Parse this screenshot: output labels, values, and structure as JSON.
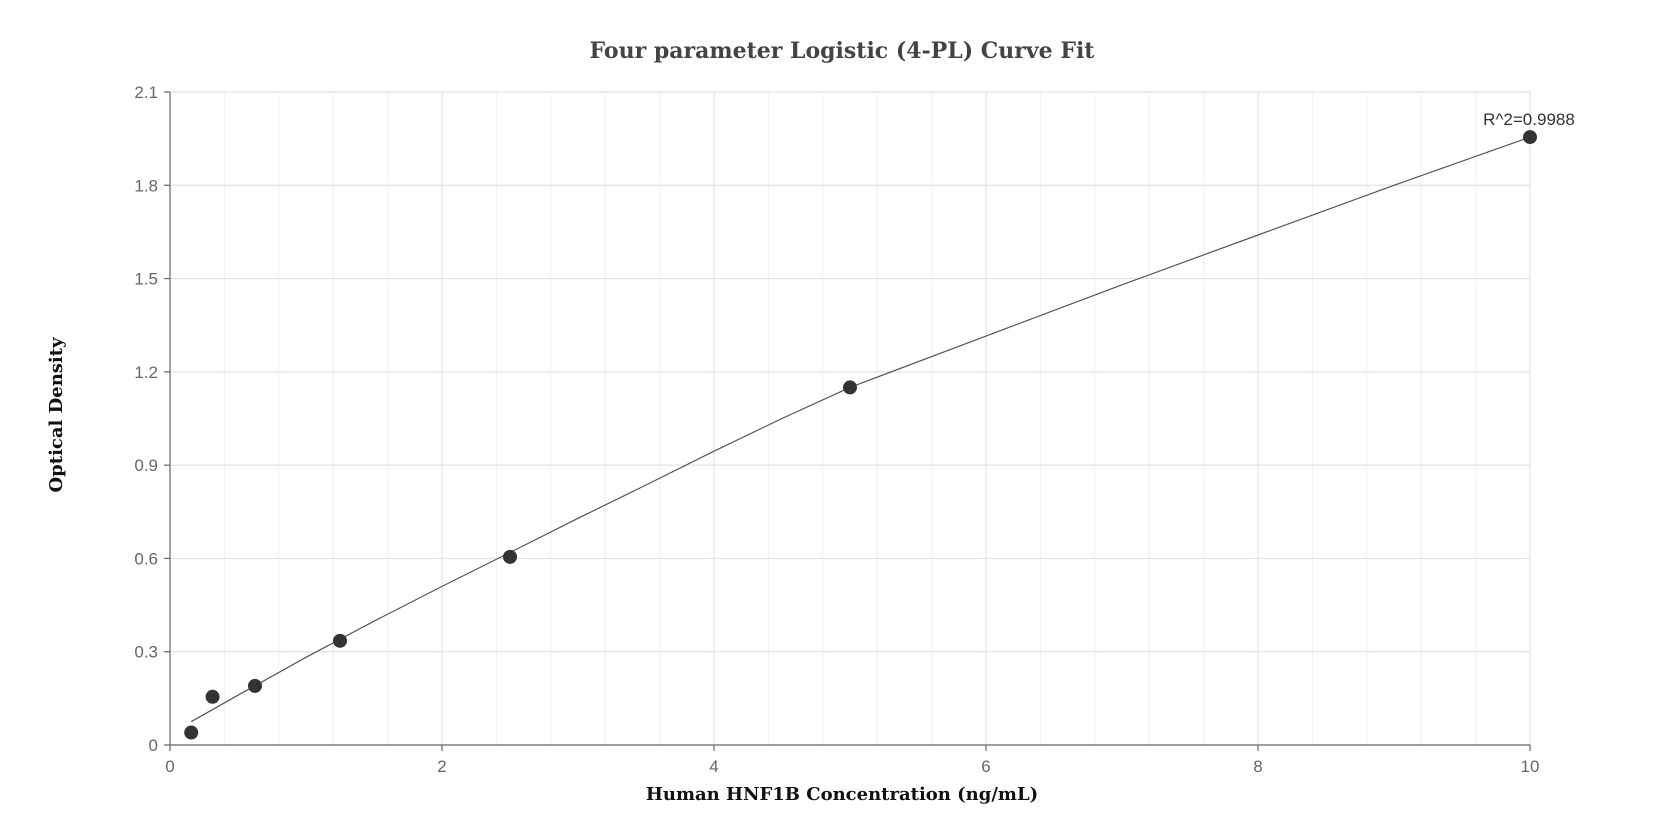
{
  "chart_data": {
    "type": "scatter",
    "title": "Four parameter Logistic (4-PL) Curve Fit",
    "xlabel": "Human HNF1B Concentration (ng/mL)",
    "ylabel": "Optical Density",
    "xlim": [
      0,
      10
    ],
    "ylim": [
      0,
      2.1
    ],
    "x_ticks": [
      "0",
      "2",
      "4",
      "6",
      "8",
      "10"
    ],
    "y_ticks": [
      "0",
      "0.3",
      "0.6",
      "0.9",
      "1.2",
      "1.5",
      "1.8",
      "2.1"
    ],
    "x_tick_values": [
      0,
      2,
      4,
      6,
      8,
      10
    ],
    "y_tick_values": [
      0,
      0.3,
      0.6,
      0.9,
      1.2,
      1.5,
      1.8,
      2.1
    ],
    "x_minor_step": 0.4,
    "grid": true,
    "series": [
      {
        "type": "scatter",
        "x": [
          0.156,
          0.313,
          0.625,
          1.25,
          2.5,
          5,
          10
        ],
        "y": [
          0.04,
          0.155,
          0.19,
          0.335,
          0.605,
          1.15,
          1.955
        ]
      },
      {
        "type": "line",
        "x": [
          0.156,
          0.5,
          1,
          1.5,
          2,
          2.5,
          3,
          3.5,
          4,
          4.5,
          5,
          6,
          7,
          8,
          9,
          10
        ],
        "y": [
          0.075,
          0.16,
          0.282,
          0.398,
          0.51,
          0.619,
          0.729,
          0.836,
          0.945,
          1.05,
          1.15,
          1.315,
          1.48,
          1.64,
          1.8,
          1.955
        ]
      }
    ],
    "annotations": [
      {
        "text": "R^2=0.9988",
        "x": 10,
        "y": 1.955
      }
    ],
    "colors": {
      "point": "#333333",
      "curve": "#555555",
      "grid_major": "#dde3ee",
      "grid_minor": "#eef1f6",
      "axis": "#666666"
    }
  }
}
